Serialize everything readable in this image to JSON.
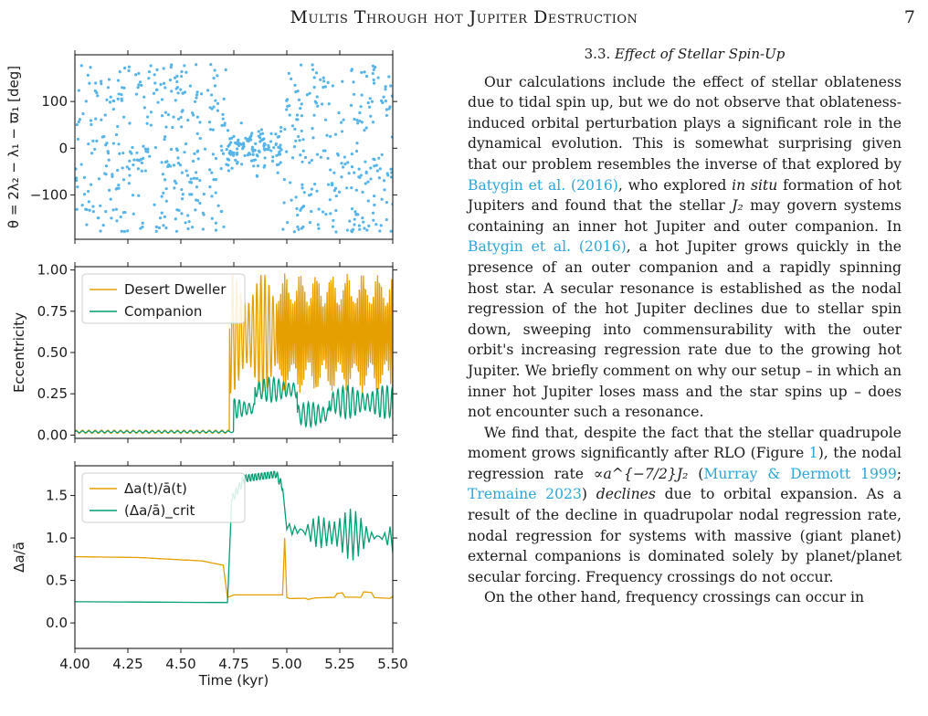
{
  "header": {
    "running_title": "Multis Through hot Jupiter Destruction",
    "page_number": "7"
  },
  "section": {
    "number": "3.3.",
    "title": "Effect of Stellar Spin-Up"
  },
  "paragraphs": [
    {
      "parts": [
        "Our calculations include the effect of stellar oblateness due to tidal spin up, but we do not observe that oblateness-induced orbital perturbation plays a significant role in the dynamical evolution. This is somewhat surprising given that our problem resembles the inverse of that explored by ",
        {
          "cite": "Batygin et al. (2016)"
        },
        ", who explored ",
        {
          "em": "in situ"
        },
        " formation of hot Jupiters and found that the stellar ",
        {
          "math": "J₂"
        },
        " may govern systems containing an inner hot Jupiter and outer companion. In ",
        {
          "cite": "Batygin et al. (2016)"
        },
        ", a hot Jupiter grows quickly in the presence of an outer companion and a rapidly spinning host star. A secular resonance is established as the nodal regression of the hot Jupiter declines due to stellar spin down, sweeping into commensurability with the outer orbit's increasing regression rate due to the growing hot Jupiter. We briefly comment on why our setup – in which an inner hot Jupiter loses mass and the star spins up – does not encounter such a resonance."
      ]
    },
    {
      "parts": [
        "We find that, despite the fact that the stellar quadrupole moment grows significantly after RLO (Figure ",
        {
          "cite": "1"
        },
        "), the nodal regression rate ",
        {
          "math": "∝a^{−7/2}J₂"
        },
        " (",
        {
          "cite": "Murray & Dermott 1999"
        },
        "; ",
        {
          "cite": "Tremaine 2023"
        },
        ") ",
        {
          "em": "declines"
        },
        " due to orbital expansion. As a result of the decline in quadrupolar nodal regression rate, nodal regression for systems with massive (giant planet) external companions is dominated solely by planet/planet secular forcing. Frequency crossings do not occur."
      ]
    },
    {
      "parts": [
        "On the other hand, frequency crossings can occur in"
      ]
    }
  ],
  "chart_data": [
    {
      "type": "scatter",
      "ylabel": "θ = 2λ₂ − λ₁ − ϖ₁ [deg]",
      "xlim": [
        4.0,
        5.5
      ],
      "ylim": [
        -195,
        200
      ],
      "yticks": [
        100,
        0,
        -100
      ],
      "ytick_labels": [
        "100",
        "0",
        "−100"
      ],
      "xticks": [
        4.0,
        4.25,
        4.5,
        4.75,
        5.0,
        5.25,
        5.5
      ],
      "xtick_labels": [],
      "color": "#56b4e9",
      "point_count": 700,
      "description_segments": [
        {
          "x_range": [
            4.0,
            4.72
          ],
          "y_range": [
            -180,
            180
          ],
          "regime": "circulating"
        },
        {
          "x_range": [
            4.72,
            4.98
          ],
          "y_range": [
            -70,
            70
          ],
          "regime": "librating"
        },
        {
          "x_range": [
            4.98,
            5.5
          ],
          "y_range": [
            -180,
            180
          ],
          "regime": "circulating"
        }
      ]
    },
    {
      "type": "line",
      "ylabel": "Eccentricity",
      "xlim": [
        4.0,
        5.5
      ],
      "ylim": [
        -0.02,
        1.02
      ],
      "yticks": [
        0.0,
        0.25,
        0.5,
        0.75,
        1.0
      ],
      "ytick_labels": [
        "0.00",
        "0.25",
        "0.50",
        "0.75",
        "1.00"
      ],
      "xticks": [
        4.0,
        4.25,
        4.5,
        4.75,
        5.0,
        5.25,
        5.5
      ],
      "xtick_labels": [],
      "legend": "top-left",
      "series": [
        {
          "name": "Desert Dweller",
          "color": "#e69f00",
          "levels": [
            {
              "x": 4.0,
              "baseline": 0.02,
              "amp": 0.01
            },
            {
              "x": 4.72,
              "baseline": 0.02,
              "amp": 0.01
            },
            {
              "x": 4.73,
              "min": 0.25,
              "max": 0.98
            },
            {
              "x": 5.5,
              "min": 0.05,
              "max": 0.95
            }
          ]
        },
        {
          "name": "Companion",
          "color": "#009e73",
          "levels": [
            {
              "x": 4.0,
              "baseline": 0.02,
              "amp": 0.005
            },
            {
              "x": 4.72,
              "baseline": 0.02,
              "amp": 0.005
            },
            {
              "x": 4.75,
              "min": 0.1,
              "max": 0.22
            },
            {
              "x": 4.85,
              "min": 0.2,
              "max": 0.35
            },
            {
              "x": 5.05,
              "min": 0.05,
              "max": 0.2
            },
            {
              "x": 5.2,
              "min": 0.1,
              "max": 0.3
            },
            {
              "x": 5.5,
              "min": 0.02,
              "max": 0.2
            }
          ]
        }
      ]
    },
    {
      "type": "line",
      "ylabel": "Δa/ā",
      "xlabel": "Time (kyr)",
      "xlim": [
        4.0,
        5.5
      ],
      "ylim": [
        -0.3,
        1.85
      ],
      "yticks": [
        0.0,
        0.5,
        1.0,
        1.5
      ],
      "ytick_labels": [
        "0.0",
        "0.5",
        "1.0",
        "1.5"
      ],
      "xticks": [
        4.0,
        4.25,
        4.5,
        4.75,
        5.0,
        5.25,
        5.5
      ],
      "xtick_labels": [
        "4.00",
        "4.25",
        "4.50",
        "4.75",
        "5.00",
        "5.25",
        "5.50"
      ],
      "legend": "top-left",
      "series": [
        {
          "name": "Δa(t)/ā(t)",
          "color": "#e69f00",
          "points": [
            [
              4.0,
              0.78
            ],
            [
              4.3,
              0.77
            ],
            [
              4.6,
              0.73
            ],
            [
              4.7,
              0.68
            ],
            [
              4.72,
              0.3
            ],
            [
              4.75,
              0.33
            ],
            [
              4.98,
              0.33
            ],
            [
              4.99,
              1.0
            ],
            [
              5.0,
              0.3
            ],
            [
              5.5,
              0.28
            ]
          ]
        },
        {
          "name": "(Δa/ā)_crit",
          "color": "#009e73",
          "points": [
            [
              4.0,
              0.25
            ],
            [
              4.72,
              0.24
            ],
            [
              4.74,
              1.45
            ],
            [
              4.8,
              1.7
            ],
            [
              4.95,
              1.75
            ],
            [
              4.98,
              1.6
            ],
            [
              5.0,
              1.1
            ],
            [
              5.5,
              1.0
            ]
          ]
        }
      ]
    }
  ]
}
